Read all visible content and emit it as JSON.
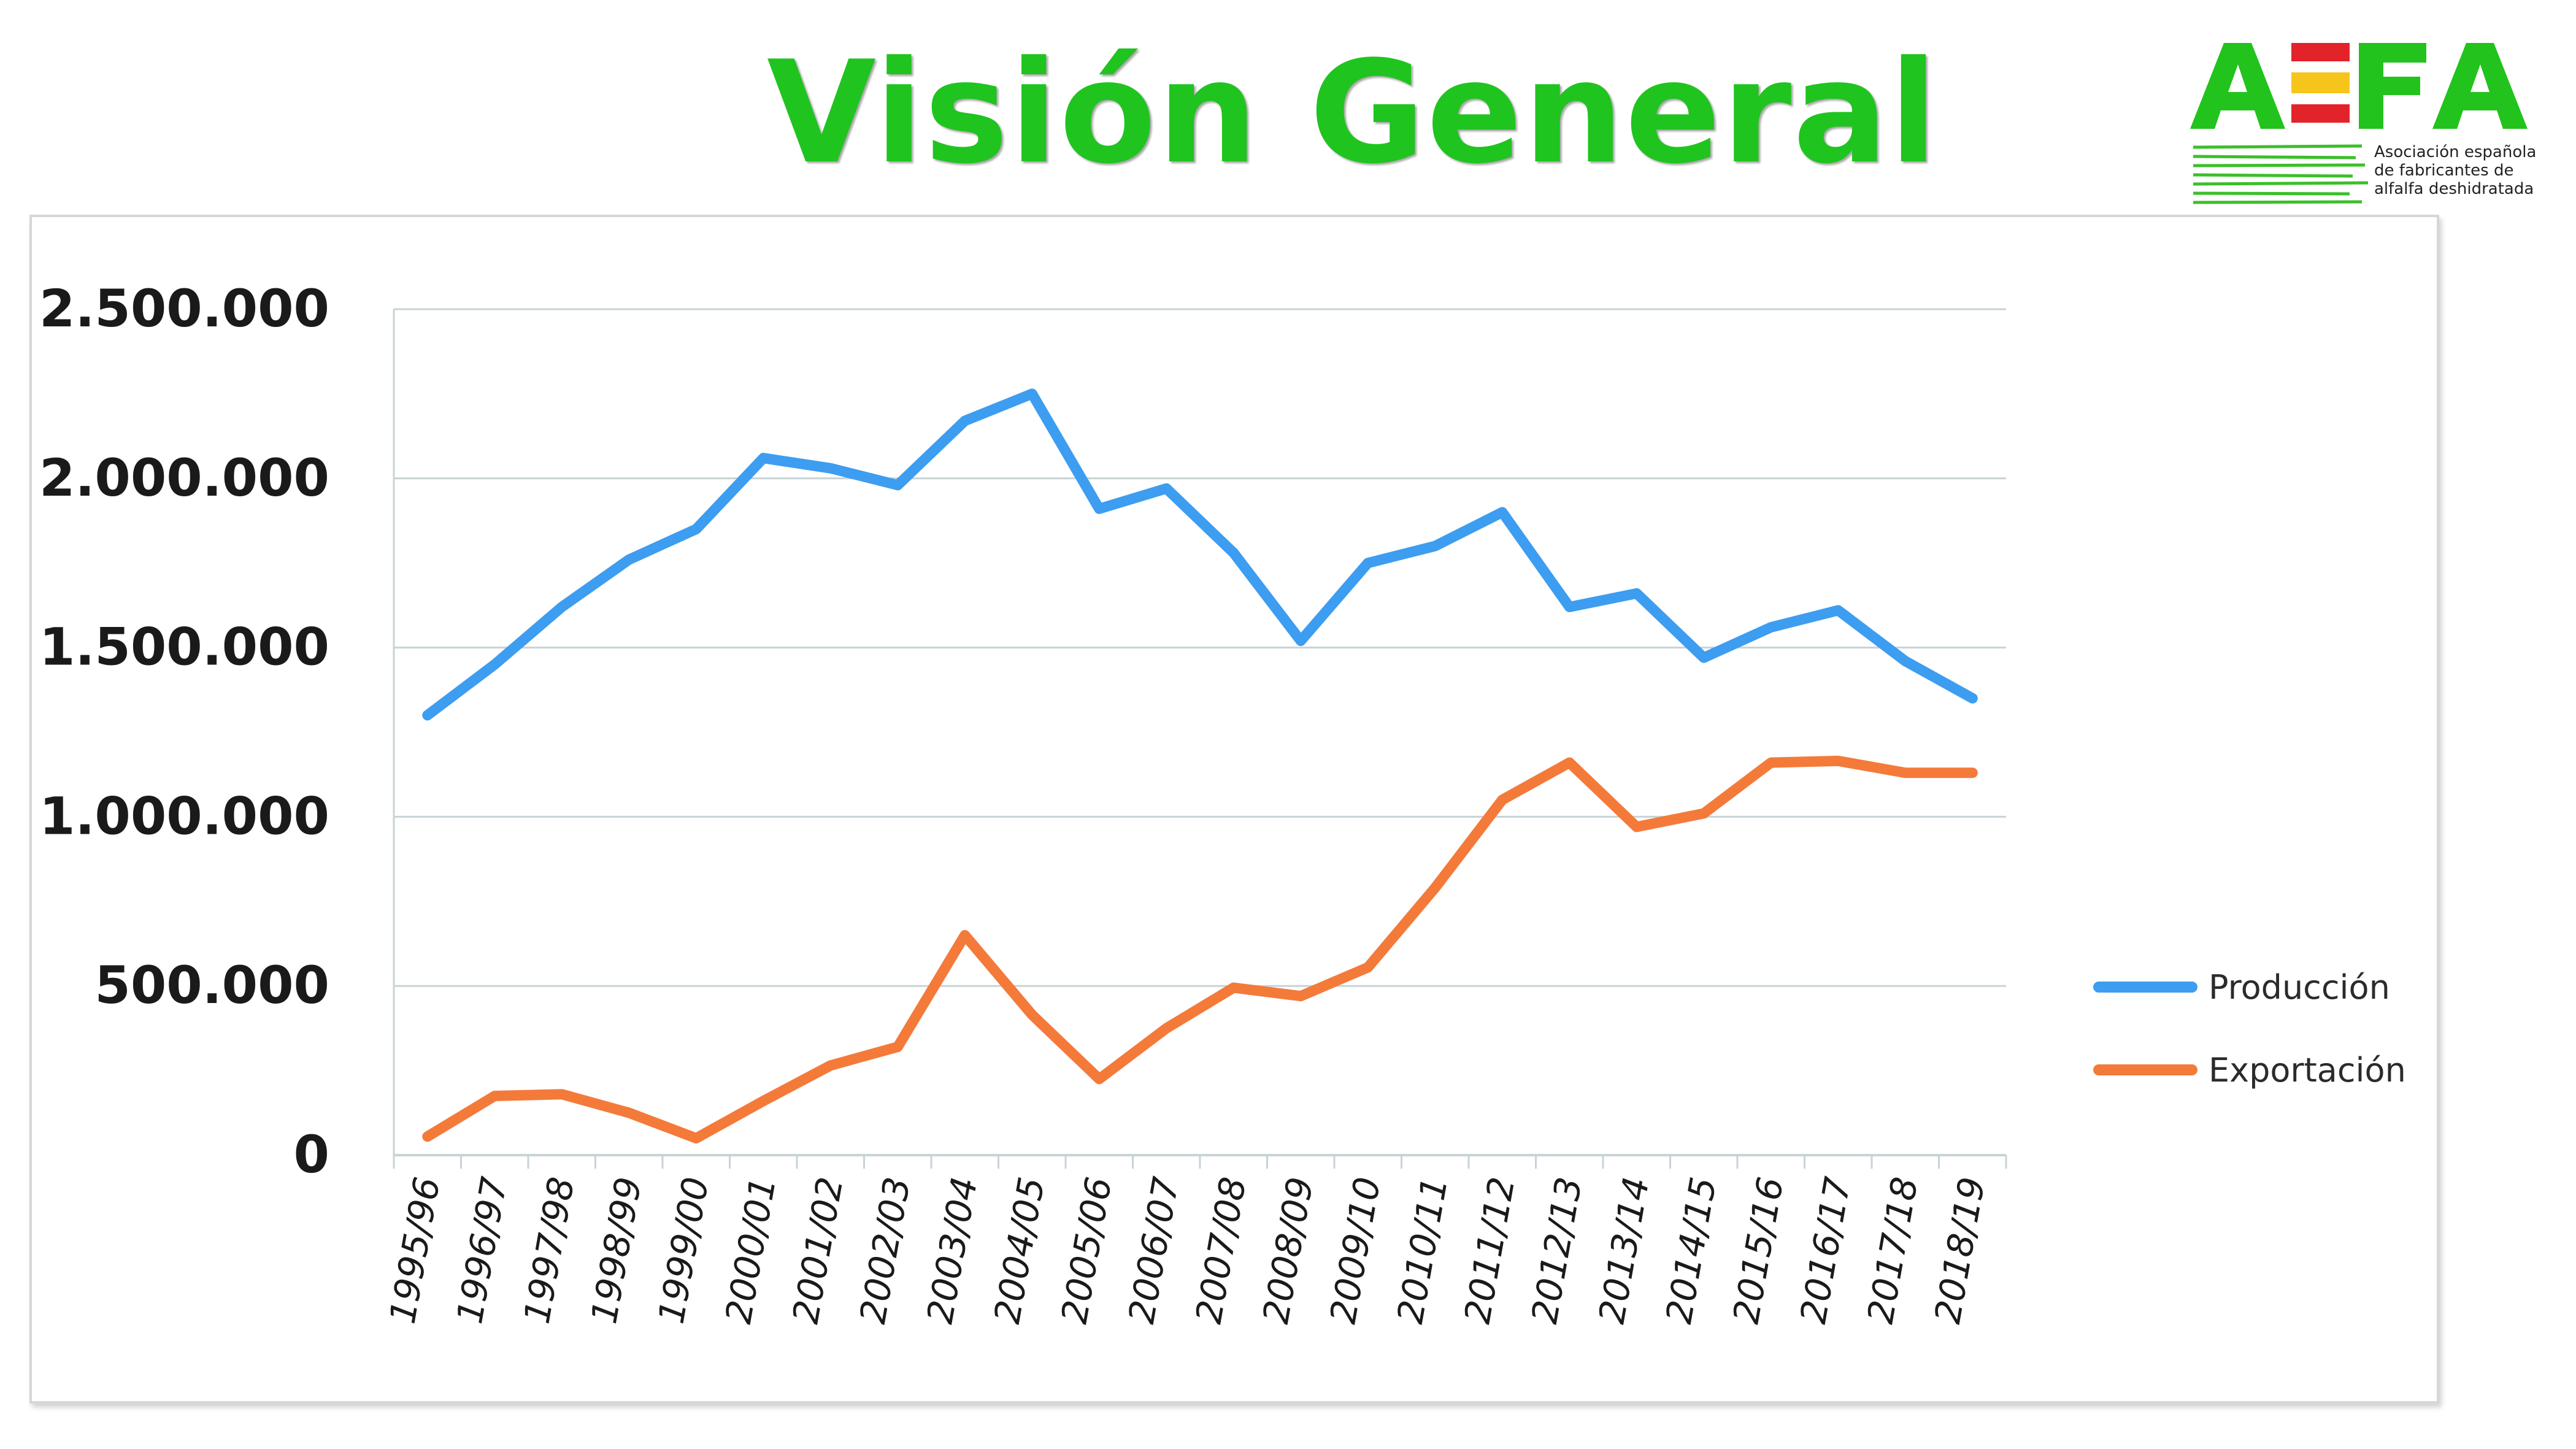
{
  "title": "Visión General",
  "logo": {
    "text": "AEFA",
    "subtitle_lines": [
      "Asociación española",
      "de fabricantes de",
      "alfalfa deshidratada"
    ]
  },
  "colors": {
    "title": "#1fc41f",
    "logo_green": "#22c31c",
    "logo_red": "#e3232a",
    "logo_yellow": "#f6c51b",
    "produccion": "#3d9df0",
    "exportacion": "#f47a3a",
    "grid": "#c8d3d6",
    "axis_text": "#1a1a1a"
  },
  "chart_data": {
    "type": "line",
    "categories": [
      "1995/96",
      "1996/97",
      "1997/98",
      "1998/99",
      "1999/00",
      "2000/01",
      "2001/02",
      "2002/03",
      "2003/04",
      "2004/05",
      "2005/06",
      "2006/07",
      "2007/08",
      "2008/09",
      "2009/10",
      "2010/11",
      "2011/12",
      "2012/13",
      "2013/14",
      "2014/15",
      "2015/16",
      "2016/17",
      "2017/18",
      "2018/19"
    ],
    "series": [
      {
        "name": "Producción",
        "color": "#3d9df0",
        "values": [
          1300000,
          1450000,
          1620000,
          1760000,
          1850000,
          2060000,
          2030000,
          1980000,
          2170000,
          2250000,
          1910000,
          1970000,
          1780000,
          1520000,
          1750000,
          1800000,
          1900000,
          1620000,
          1660000,
          1470000,
          1560000,
          1610000,
          1460000,
          1350000
        ]
      },
      {
        "name": "Exportación",
        "color": "#f47a3a",
        "values": [
          55000,
          175000,
          180000,
          125000,
          50000,
          160000,
          265000,
          320000,
          650000,
          415000,
          225000,
          375000,
          495000,
          470000,
          555000,
          790000,
          1050000,
          1160000,
          970000,
          1010000,
          1160000,
          1165000,
          1130000,
          1130000
        ]
      }
    ],
    "y_ticks": [
      "2.500.000",
      "2.000.000",
      "1.500.000",
      "1.000.000",
      "500.000",
      "0"
    ],
    "ylim": [
      0,
      2500000
    ],
    "grid": true,
    "legend_position": "right"
  }
}
